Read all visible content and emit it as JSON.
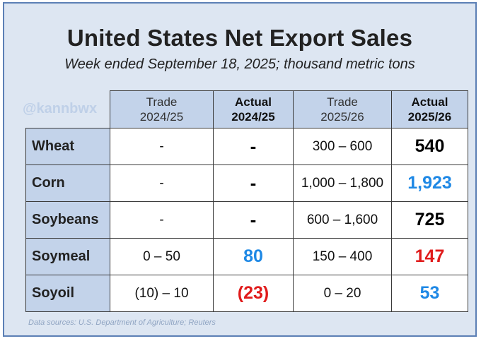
{
  "title": "United States Net Export Sales",
  "subtitle": "Week ended September 18, 2025; thousand metric tons",
  "watermark": "@kannbwx",
  "columns": [
    {
      "line1": "Trade",
      "line2": "2024/25"
    },
    {
      "line1": "Actual",
      "line2": "2024/25"
    },
    {
      "line1": "Trade",
      "line2": "2025/26"
    },
    {
      "line1": "Actual",
      "line2": "2025/26"
    }
  ],
  "rows": [
    {
      "label": "Wheat",
      "trade_2425": "-",
      "actual_2425": "-",
      "trade_2526": "300 – 600",
      "actual_2526": "540"
    },
    {
      "label": "Corn",
      "trade_2425": "-",
      "actual_2425": "-",
      "trade_2526": "1,000 – 1,800",
      "actual_2526": "1,923"
    },
    {
      "label": "Soybeans",
      "trade_2425": "-",
      "actual_2425": "-",
      "trade_2526": "600 – 1,600",
      "actual_2526": "725"
    },
    {
      "label": "Soymeal",
      "trade_2425": "0 – 50",
      "actual_2425": "80",
      "trade_2526": "150 – 400",
      "actual_2526": "147"
    },
    {
      "label": "Soyoil",
      "trade_2425": "(10) – 10",
      "actual_2425": "(23)",
      "trade_2526": "0 – 20",
      "actual_2526": "53"
    }
  ],
  "colors": {
    "panel_bg": "#dde6f2",
    "header_bg": "#c3d3ea",
    "highlight_blue": "#1e88e5",
    "highlight_red": "#e01b1b"
  },
  "footnote": "Data sources: U.S. Department of Agriculture; Reuters"
}
